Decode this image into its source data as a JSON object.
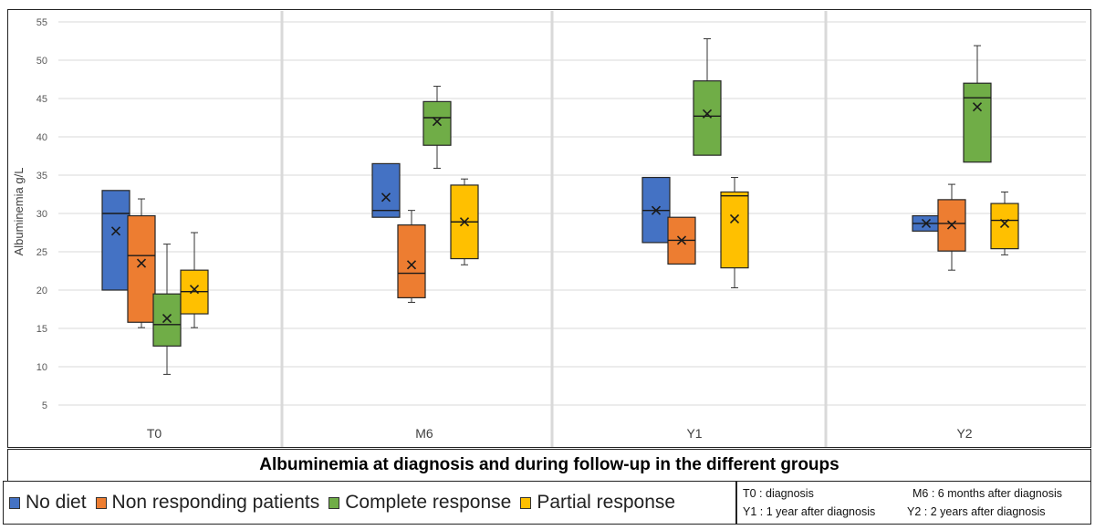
{
  "chart_data": {
    "type": "boxplot",
    "title": "Albuminemia at diagnosis and during follow-up in the different groups",
    "ylabel": "Albuminemia g/L",
    "xlabel": "",
    "ylim": [
      5,
      55
    ],
    "yticks": [
      5,
      10,
      15,
      20,
      25,
      30,
      35,
      40,
      45,
      50,
      55
    ],
    "ytick_labels": [
      "5",
      "10",
      "15",
      "20",
      "25",
      "30",
      "35",
      "40",
      "45",
      "50",
      "55"
    ],
    "grid": true,
    "legend_position": "bottom-left",
    "categories": [
      "T0",
      "M6",
      "Y1",
      "Y2"
    ],
    "series": [
      {
        "name": "No diet",
        "color": "#4472C4",
        "boxes": [
          {
            "whisker_low": 20,
            "q1": 20,
            "median": 30,
            "q3": 33,
            "whisker_high": 33,
            "mean": 27.7
          },
          {
            "whisker_low": 29.5,
            "q1": 29.5,
            "median": 30.4,
            "q3": 36.5,
            "whisker_high": 36.5,
            "mean": 32.1
          },
          {
            "whisker_low": 26.2,
            "q1": 26.2,
            "median": 30.4,
            "q3": 34.7,
            "whisker_high": 34.7,
            "mean": 30.4
          },
          {
            "whisker_low": 27.7,
            "q1": 27.7,
            "median": 28.7,
            "q3": 29.7,
            "whisker_high": 29.7,
            "mean": 28.7
          }
        ]
      },
      {
        "name": "Non responding patients",
        "color": "#ED7D31",
        "boxes": [
          {
            "whisker_low": 15.1,
            "q1": 15.8,
            "median": 24.5,
            "q3": 29.7,
            "whisker_high": 31.9,
            "mean": 23.5
          },
          {
            "whisker_low": 18.4,
            "q1": 19,
            "median": 22.2,
            "q3": 28.5,
            "whisker_high": 30.4,
            "mean": 23.3
          },
          {
            "whisker_low": 23.4,
            "q1": 23.4,
            "median": 26.5,
            "q3": 29.5,
            "whisker_high": 29.5,
            "mean": 26.5
          },
          {
            "whisker_low": 22.6,
            "q1": 25.1,
            "median": 28.7,
            "q3": 31.8,
            "whisker_high": 33.8,
            "mean": 28.5
          }
        ]
      },
      {
        "name": "Complete response",
        "color": "#70AD47",
        "boxes": [
          {
            "whisker_low": 9,
            "q1": 12.7,
            "median": 15.5,
            "q3": 19.5,
            "whisker_high": 26,
            "mean": 16.3
          },
          {
            "whisker_low": 35.9,
            "q1": 38.9,
            "median": 42.5,
            "q3": 44.6,
            "whisker_high": 46.6,
            "mean": 42
          },
          {
            "whisker_low": 37.6,
            "q1": 37.6,
            "median": 42.7,
            "q3": 47.3,
            "whisker_high": 52.8,
            "mean": 43
          },
          {
            "whisker_low": 36.7,
            "q1": 36.7,
            "median": 45.1,
            "q3": 47,
            "whisker_high": 51.9,
            "mean": 43.9
          }
        ]
      },
      {
        "name": "Partial response",
        "color": "#FFC000",
        "boxes": [
          {
            "whisker_low": 15.1,
            "q1": 16.9,
            "median": 19.8,
            "q3": 22.6,
            "whisker_high": 27.5,
            "mean": 20.1
          },
          {
            "whisker_low": 23.3,
            "q1": 24.1,
            "median": 28.9,
            "q3": 33.7,
            "whisker_high": 34.5,
            "mean": 28.9
          },
          {
            "whisker_low": 20.3,
            "q1": 22.9,
            "median": 32.3,
            "q3": 32.8,
            "whisker_high": 34.7,
            "mean": 29.3
          },
          {
            "whisker_low": 24.6,
            "q1": 25.4,
            "median": 29.1,
            "q3": 31.3,
            "whisker_high": 32.8,
            "mean": 28.7
          }
        ]
      }
    ]
  },
  "notes": {
    "t0": "T0 : diagnosis",
    "m6": "M6 : 6 months after diagnosis",
    "y1": "Y1 : 1 year after diagnosis",
    "y2": "Y2 : 2 years after diagnosis"
  }
}
